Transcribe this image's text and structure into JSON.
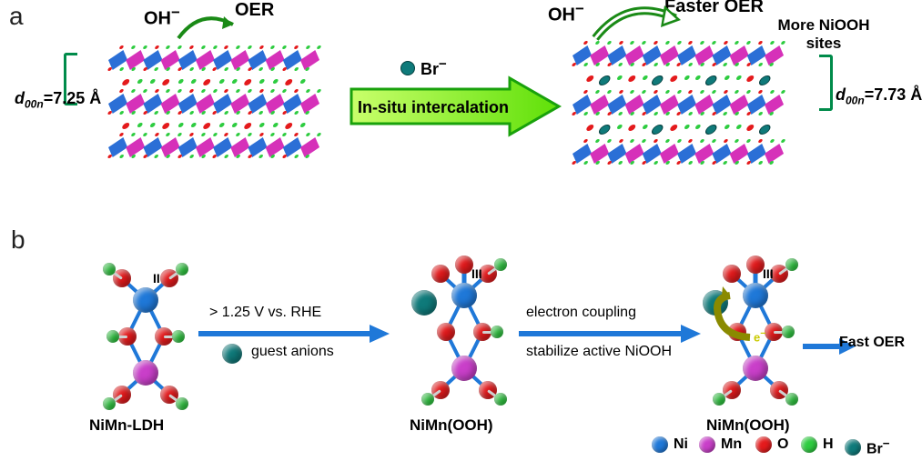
{
  "panel_a": {
    "label": "a",
    "left_spacing_label": "d00n=7.25 Å",
    "right_spacing_label": "d00n=7.73 Å",
    "ion_label": "Br−",
    "center_arrow_label": "In-situ intercalation",
    "oh_label": "OH−",
    "oer_left": "OER",
    "oer_right": "Faster OER",
    "extra_right": "More NiOOH sites",
    "slab_color_1": "#2b6fd6",
    "slab_color_2": "#d631b9",
    "atom_o_color": "#e41a1c",
    "atom_h_color": "#2ecc40",
    "br_color": "#0f7a7a",
    "arrow_fill": "#7cf53a",
    "arrow_border": "#19a10b",
    "brace_color": "#008b4a"
  },
  "panel_b": {
    "label": "b",
    "mol_labels": [
      "NiMn-LDH",
      "NiMn(OOH)",
      "NiMn(OOH)"
    ],
    "ni_state_left": "II",
    "ni_state_mid": "III",
    "ni_state_right": "III",
    "arrow1_top": "> 1.25 V vs. RHE",
    "arrow1_bottom": "guest anions",
    "arrow2_top": "electron coupling",
    "arrow2_bottom": "stabilize active NiOOH",
    "fast_oer_label": "Fast OER",
    "electron_label": "e−",
    "colors": {
      "Ni": "#1f78d8",
      "Mn": "#c93fc9",
      "O": "#e41a1c",
      "H": "#2ecc40",
      "Br": "#0f7a7a",
      "bond": "#1f78d8"
    },
    "legend": [
      {
        "label": "Ni",
        "color": "#1f78d8"
      },
      {
        "label": "Mn",
        "color": "#c93fc9"
      },
      {
        "label": "O",
        "color": "#e41a1c"
      },
      {
        "label": "H",
        "color": "#2ecc40"
      },
      {
        "label": "Br−",
        "color": "#0f7a7a"
      }
    ]
  }
}
